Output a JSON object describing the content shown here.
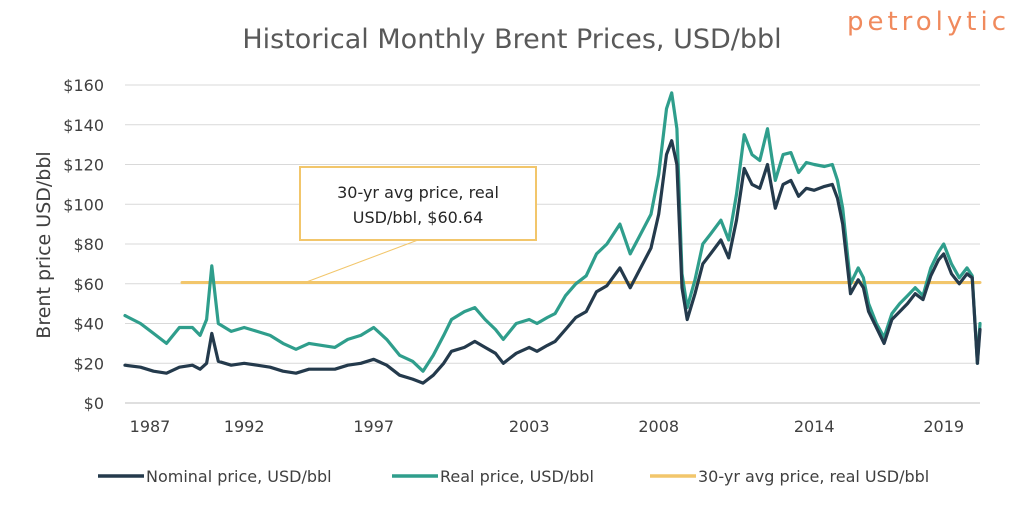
{
  "chart_data": {
    "type": "line",
    "title": "Historical Monthly Brent Prices, USD/bbl",
    "brand": "petrolytic",
    "ylabel": "Brent price USD/bbl",
    "xlabel": "",
    "ylim": [
      0,
      160
    ],
    "xlim": [
      1987.4,
      2020.4
    ],
    "y_ticks": [
      0,
      20,
      40,
      60,
      80,
      100,
      120,
      140,
      160
    ],
    "y_tick_labels": [
      "$0",
      "$20",
      "$40",
      "$60",
      "$80",
      "$100",
      "$120",
      "$140",
      "$160"
    ],
    "x_ticks": [
      1987,
      1992,
      1997,
      2003,
      2008,
      2014,
      2019
    ],
    "x_tick_labels": [
      "1987",
      "1992",
      "1997",
      "2003",
      "2008",
      "2014",
      "2019"
    ],
    "grid": true,
    "legend_position": "bottom",
    "annotation": {
      "line1": "30-yr avg price, real",
      "line2": "USD/bbl,  $60.64",
      "value": 60.64
    },
    "colors": {
      "nominal": "#243a4c",
      "real": "#2f9e8c",
      "average": "#f2c66b",
      "grid": "#d9d9d9",
      "brand": "#f08a5d"
    },
    "series": [
      {
        "name": "Nominal price, USD/bbl",
        "key": "nominal",
        "x": [
          1987.4,
          1988.0,
          1988.5,
          1989.0,
          1989.5,
          1990.0,
          1990.3,
          1990.55,
          1990.75,
          1991.0,
          1991.5,
          1992.0,
          1992.5,
          1993.0,
          1993.5,
          1994.0,
          1994.5,
          1995.0,
          1995.5,
          1996.0,
          1996.5,
          1997.0,
          1997.5,
          1998.0,
          1998.5,
          1998.9,
          1999.3,
          1999.7,
          2000.0,
          2000.5,
          2000.9,
          2001.3,
          2001.7,
          2002.0,
          2002.5,
          2003.0,
          2003.3,
          2003.7,
          2004.0,
          2004.4,
          2004.8,
          2005.2,
          2005.6,
          2006.0,
          2006.5,
          2006.9,
          2007.3,
          2007.7,
          2008.0,
          2008.3,
          2008.5,
          2008.7,
          2008.9,
          2009.1,
          2009.4,
          2009.7,
          2010.0,
          2010.4,
          2010.7,
          2011.0,
          2011.3,
          2011.6,
          2011.9,
          2012.2,
          2012.5,
          2012.8,
          2013.1,
          2013.4,
          2013.7,
          2014.0,
          2014.4,
          2014.7,
          2014.9,
          2015.1,
          2015.4,
          2015.7,
          2015.9,
          2016.1,
          2016.4,
          2016.7,
          2017.0,
          2017.3,
          2017.6,
          2017.9,
          2018.2,
          2018.5,
          2018.8,
          2019.0,
          2019.3,
          2019.6,
          2019.9,
          2020.1,
          2020.3,
          2020.4
        ],
        "values": [
          19,
          18,
          16,
          15,
          18,
          19,
          17,
          20,
          35,
          21,
          19,
          20,
          19,
          18,
          16,
          15,
          17,
          17,
          17,
          19,
          20,
          22,
          19,
          14,
          12,
          10,
          14,
          20,
          26,
          28,
          31,
          28,
          25,
          20,
          25,
          28,
          26,
          29,
          31,
          37,
          43,
          46,
          56,
          59,
          68,
          58,
          68,
          78,
          95,
          125,
          132,
          120,
          58,
          42,
          55,
          70,
          75,
          82,
          73,
          92,
          118,
          110,
          108,
          120,
          98,
          110,
          112,
          104,
          108,
          107,
          109,
          110,
          103,
          90,
          55,
          62,
          58,
          46,
          38,
          30,
          42,
          46,
          50,
          55,
          52,
          64,
          72,
          75,
          65,
          60,
          65,
          63,
          20,
          37
        ]
      },
      {
        "name": "Real price, USD/bbl",
        "key": "real",
        "x": [
          1987.4,
          1988.0,
          1988.5,
          1989.0,
          1989.5,
          1990.0,
          1990.3,
          1990.55,
          1990.75,
          1991.0,
          1991.5,
          1992.0,
          1992.5,
          1993.0,
          1993.5,
          1994.0,
          1994.5,
          1995.0,
          1995.5,
          1996.0,
          1996.5,
          1997.0,
          1997.5,
          1998.0,
          1998.5,
          1998.9,
          1999.3,
          1999.7,
          2000.0,
          2000.5,
          2000.9,
          2001.3,
          2001.7,
          2002.0,
          2002.5,
          2003.0,
          2003.3,
          2003.7,
          2004.0,
          2004.4,
          2004.8,
          2005.2,
          2005.6,
          2006.0,
          2006.5,
          2006.9,
          2007.3,
          2007.7,
          2008.0,
          2008.3,
          2008.5,
          2008.7,
          2008.9,
          2009.1,
          2009.4,
          2009.7,
          2010.0,
          2010.4,
          2010.7,
          2011.0,
          2011.3,
          2011.6,
          2011.9,
          2012.2,
          2012.5,
          2012.8,
          2013.1,
          2013.4,
          2013.7,
          2014.0,
          2014.4,
          2014.7,
          2014.9,
          2015.1,
          2015.4,
          2015.7,
          2015.9,
          2016.1,
          2016.4,
          2016.7,
          2017.0,
          2017.3,
          2017.6,
          2017.9,
          2018.2,
          2018.5,
          2018.8,
          2019.0,
          2019.3,
          2019.6,
          2019.9,
          2020.1,
          2020.3,
          2020.4
        ],
        "values": [
          44,
          40,
          35,
          30,
          38,
          38,
          34,
          42,
          69,
          40,
          36,
          38,
          36,
          34,
          30,
          27,
          30,
          29,
          28,
          32,
          34,
          38,
          32,
          24,
          21,
          16,
          24,
          34,
          42,
          46,
          48,
          42,
          37,
          32,
          40,
          42,
          40,
          43,
          45,
          54,
          60,
          64,
          75,
          80,
          90,
          75,
          85,
          95,
          115,
          148,
          156,
          138,
          65,
          48,
          62,
          80,
          85,
          92,
          82,
          105,
          135,
          125,
          122,
          138,
          112,
          125,
          126,
          116,
          121,
          120,
          119,
          120,
          112,
          98,
          60,
          68,
          63,
          50,
          40,
          33,
          45,
          50,
          54,
          58,
          54,
          68,
          76,
          80,
          70,
          63,
          68,
          64,
          20,
          40
        ]
      },
      {
        "name": "30-yr avg price, real USD/bbl",
        "key": "average",
        "x": [
          1989.6,
          2020.4
        ],
        "values": [
          60.64,
          60.64
        ]
      }
    ]
  }
}
